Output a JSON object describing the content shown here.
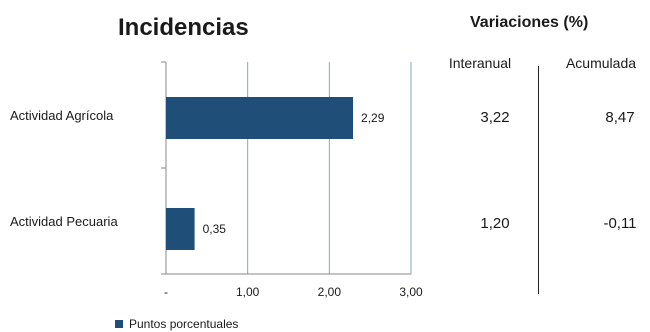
{
  "title": "Incidencias",
  "variations": {
    "title": "Variaciones (%)",
    "columns": [
      "Interanual",
      "Acumulada"
    ],
    "rows": [
      {
        "category": "Actividad Agrícola",
        "interanual": "3,22",
        "acumulada": "8,47"
      },
      {
        "category": "Actividad Pecuaria",
        "interanual": "1,20",
        "acumulada": "-0,11"
      }
    ]
  },
  "colors": {
    "bar": "#1f4e79",
    "grid": "#7fa7c9",
    "axis": "#888888"
  },
  "chart_data": {
    "type": "bar",
    "orientation": "horizontal",
    "categories": [
      "Actividad Agrícola",
      "Actividad Pecuaria"
    ],
    "series": [
      {
        "name": "Puntos porcentuales",
        "values": [
          2.29,
          0.35
        ]
      }
    ],
    "data_labels": [
      "2,29",
      "0,35"
    ],
    "xlim": [
      0,
      3
    ],
    "xticks": [
      0,
      1,
      2,
      3
    ],
    "xtick_labels": [
      "-",
      "1,00",
      "2,00",
      "3,00"
    ],
    "grid": true,
    "legend": "bottom-left"
  }
}
